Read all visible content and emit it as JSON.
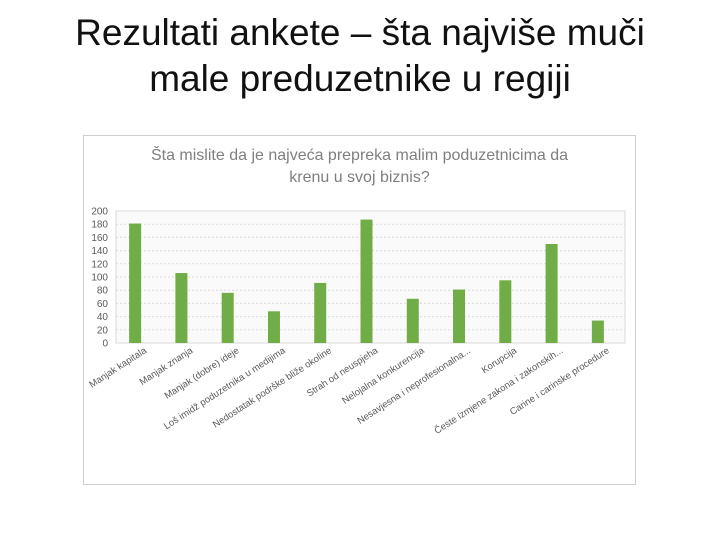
{
  "slide": {
    "title_line1": "Rezultati ankete – šta najviše muči",
    "title_line2": "male preduzetnike u regiji"
  },
  "colors": {
    "bar": "#70ad47",
    "axis_text": "#595959",
    "grid": "#d9d9d9",
    "title": "#7f7f7f"
  },
  "chart_data": {
    "type": "bar",
    "title_line1": "Šta mislite da je najveća prepreka malim poduzetnicima da",
    "title_line2": "krenu u svoj biznis?",
    "categories": [
      "Manjak kapitala",
      "Manjak znanja",
      "Manjak (dobre) ideje",
      "Loš imidž poduzetnika u medijima",
      "Nedostatak podrške bliže okoline",
      "Strah od neuspjeha",
      "Nelojalna konkurencija",
      "Nesavjesna i neprofesionalna...",
      "Korupcija",
      "Česte izmjene zakona i zakonskih...",
      "Carine i carinske procedure"
    ],
    "values": [
      181,
      106,
      76,
      48,
      91,
      187,
      67,
      81,
      95,
      150,
      34
    ],
    "ylim": [
      0,
      200
    ],
    "yticks": [
      0,
      20,
      40,
      60,
      80,
      100,
      120,
      140,
      160,
      180,
      200
    ],
    "grid": true,
    "legend": "none"
  }
}
